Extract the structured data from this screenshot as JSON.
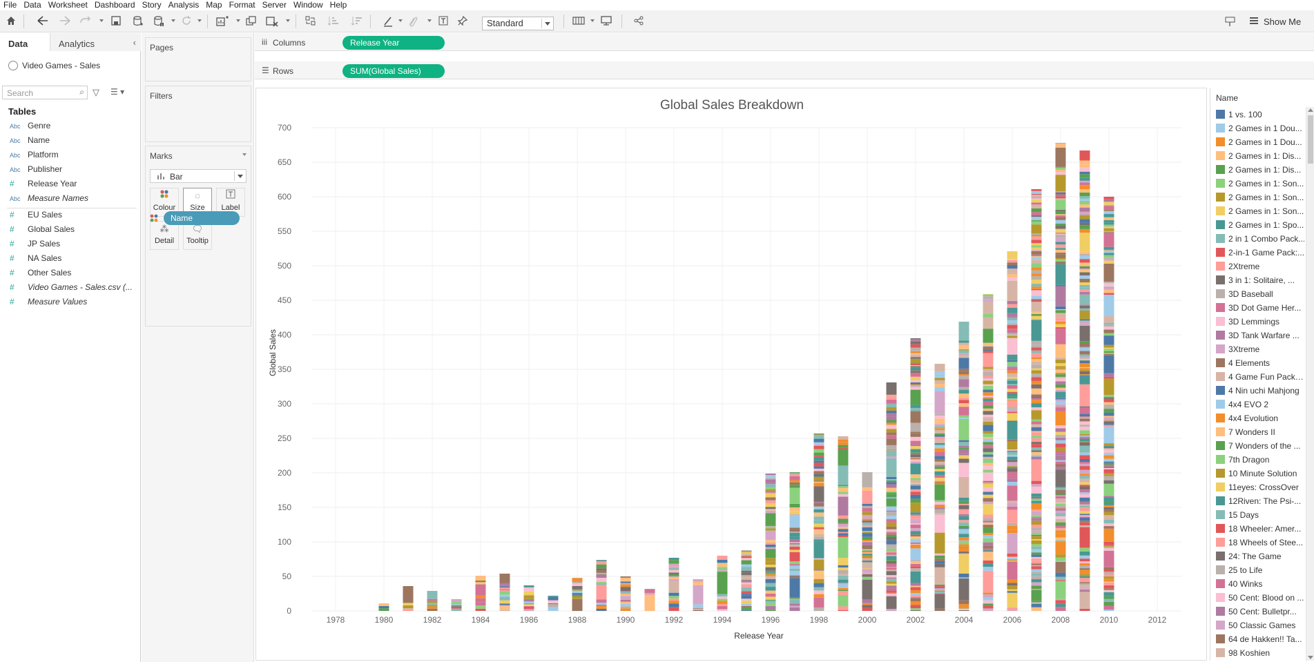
{
  "menu": [
    "File",
    "Data",
    "Worksheet",
    "Dashboard",
    "Story",
    "Analysis",
    "Map",
    "Format",
    "Server",
    "Window",
    "Help"
  ],
  "toolbar": {
    "fit_select": "Standard",
    "show_me": "Show Me",
    "icons": [
      "home-icon",
      "undo-icon",
      "redo-icon",
      "replay-icon",
      "save-icon",
      "new-datasource-icon",
      "pause-updates-icon",
      "refresh-icon",
      "new-worksheet-icon",
      "duplicate-icon",
      "clear-icon",
      "swap-icon",
      "sort-ascending-icon",
      "sort-descending-icon",
      "highlight-icon",
      "group-icon",
      "label-icon",
      "pin-icon",
      "show-cards-icon",
      "presentation-icon",
      "share-icon",
      "pin-tooltip-icon"
    ]
  },
  "data_pane": {
    "tabs": [
      "Data",
      "Analytics"
    ],
    "datasource": "Video Games - Sales",
    "search_placeholder": "Search",
    "tables_title": "Tables",
    "dimensions": [
      {
        "type": "Abc",
        "label": "Genre"
      },
      {
        "type": "Abc",
        "label": "Name"
      },
      {
        "type": "Abc",
        "label": "Platform"
      },
      {
        "type": "Abc",
        "label": "Publisher"
      },
      {
        "type": "#",
        "label": "Release Year"
      },
      {
        "type": "Abc",
        "label": "Measure Names"
      }
    ],
    "measures": [
      {
        "type": "#",
        "label": "EU Sales"
      },
      {
        "type": "#",
        "label": "Global Sales"
      },
      {
        "type": "#",
        "label": "JP Sales"
      },
      {
        "type": "#",
        "label": "NA Sales"
      },
      {
        "type": "#",
        "label": "Other Sales"
      },
      {
        "type": "#",
        "label": "Video Games - Sales.csv (..."
      },
      {
        "type": "#",
        "label": "Measure Values"
      }
    ]
  },
  "cards": {
    "pages": "Pages",
    "filters": "Filters",
    "marks": "Marks",
    "mark_type": "Bar",
    "mark_buttons": [
      "Colour",
      "Size",
      "Label",
      "Detail",
      "Tooltip"
    ],
    "color_pill": "Name"
  },
  "shelves": {
    "columns_label": "Columns",
    "columns_pill": "Release Year",
    "rows_label": "Rows",
    "rows_pill": "SUM(Global Sales)"
  },
  "legend": {
    "title": "Name",
    "items": [
      {
        "label": "1 vs. 100",
        "color": "#4e79a7"
      },
      {
        "label": "2 Games in 1 Dou...",
        "color": "#a0cbe8"
      },
      {
        "label": "2 Games in 1 Dou...",
        "color": "#f28e2b"
      },
      {
        "label": "2 Games in 1: Dis...",
        "color": "#ffbe7d"
      },
      {
        "label": "2 Games in 1: Dis...",
        "color": "#59a14f"
      },
      {
        "label": "2 Games in 1: Son...",
        "color": "#8cd17d"
      },
      {
        "label": "2 Games in 1: Son...",
        "color": "#b6992d"
      },
      {
        "label": "2 Games in 1: Son...",
        "color": "#f1ce63"
      },
      {
        "label": "2 Games in 1: Spo...",
        "color": "#499894"
      },
      {
        "label": "2 in 1 Combo Pack...",
        "color": "#86bcb6"
      },
      {
        "label": "2-in-1 Game Pack:...",
        "color": "#e15759"
      },
      {
        "label": "2Xtreme",
        "color": "#ff9d9a"
      },
      {
        "label": "3 in 1: Solitaire, ...",
        "color": "#79706e"
      },
      {
        "label": "3D Baseball",
        "color": "#bab0ac"
      },
      {
        "label": "3D Dot Game Her...",
        "color": "#d37295"
      },
      {
        "label": "3D Lemmings",
        "color": "#fabfd2"
      },
      {
        "label": "3D Tank Warfare ...",
        "color": "#b07aa1"
      },
      {
        "label": "3Xtreme",
        "color": "#d4a6c8"
      },
      {
        "label": "4 Elements",
        "color": "#9d7660"
      },
      {
        "label": "4 Game Fun Pack: ...",
        "color": "#d7b5a6"
      },
      {
        "label": "4 Nin uchi Mahjong",
        "color": "#4e79a7"
      },
      {
        "label": "4x4 EVO 2",
        "color": "#a0cbe8"
      },
      {
        "label": "4x4 Evolution",
        "color": "#f28e2b"
      },
      {
        "label": "7 Wonders II",
        "color": "#ffbe7d"
      },
      {
        "label": "7 Wonders of the ...",
        "color": "#59a14f"
      },
      {
        "label": "7th Dragon",
        "color": "#8cd17d"
      },
      {
        "label": "10 Minute Solution",
        "color": "#b6992d"
      },
      {
        "label": "11eyes: CrossOver",
        "color": "#f1ce63"
      },
      {
        "label": "12Riven: The Psi-...",
        "color": "#499894"
      },
      {
        "label": "15 Days",
        "color": "#86bcb6"
      },
      {
        "label": "18 Wheeler: Amer...",
        "color": "#e15759"
      },
      {
        "label": "18 Wheels of Stee...",
        "color": "#ff9d9a"
      },
      {
        "label": "24: The Game",
        "color": "#79706e"
      },
      {
        "label": "25 to Life",
        "color": "#bab0ac"
      },
      {
        "label": "40 Winks",
        "color": "#d37295"
      },
      {
        "label": "50 Cent: Blood on ...",
        "color": "#fabfd2"
      },
      {
        "label": "50 Cent: Bulletpr...",
        "color": "#b07aa1"
      },
      {
        "label": "50 Classic Games",
        "color": "#d4a6c8"
      },
      {
        "label": "64 de Hakken!! Ta...",
        "color": "#9d7660"
      },
      {
        "label": "98 Koshien",
        "color": "#d7b5a6"
      }
    ]
  },
  "chart_data": {
    "type": "bar",
    "title": "Global Sales Breakdown",
    "xlabel": "Release Year",
    "ylabel": "Global Sales",
    "stacked_by": "Name",
    "x_ticks": [
      "1978",
      "1980",
      "1982",
      "1984",
      "1986",
      "1988",
      "1990",
      "1992",
      "1994",
      "1996",
      "1998",
      "2000",
      "2002",
      "2004",
      "2006",
      "2008",
      "2010",
      "2012"
    ],
    "y_ticks": [
      "0",
      "50",
      "100",
      "150",
      "200",
      "250",
      "300",
      "350",
      "400",
      "450",
      "500",
      "550",
      "600",
      "650",
      "700"
    ],
    "xlim": [
      1977,
      2013
    ],
    "ylim": [
      0,
      700
    ],
    "grid": true,
    "categories": [
      1980,
      1981,
      1982,
      1983,
      1984,
      1985,
      1986,
      1987,
      1988,
      1989,
      1990,
      1991,
      1992,
      1993,
      1994,
      1995,
      1996,
      1997,
      1998,
      1999,
      2000,
      2001,
      2002,
      2003,
      2004,
      2005,
      2006,
      2007,
      2008,
      2009,
      2010
    ],
    "values": [
      11,
      36,
      29,
      17,
      51,
      54,
      37,
      22,
      48,
      74,
      50,
      32,
      77,
      46,
      80,
      88,
      199,
      201,
      257,
      253,
      201,
      331,
      395,
      358,
      419,
      459,
      521,
      611,
      678,
      667,
      600
    ]
  }
}
